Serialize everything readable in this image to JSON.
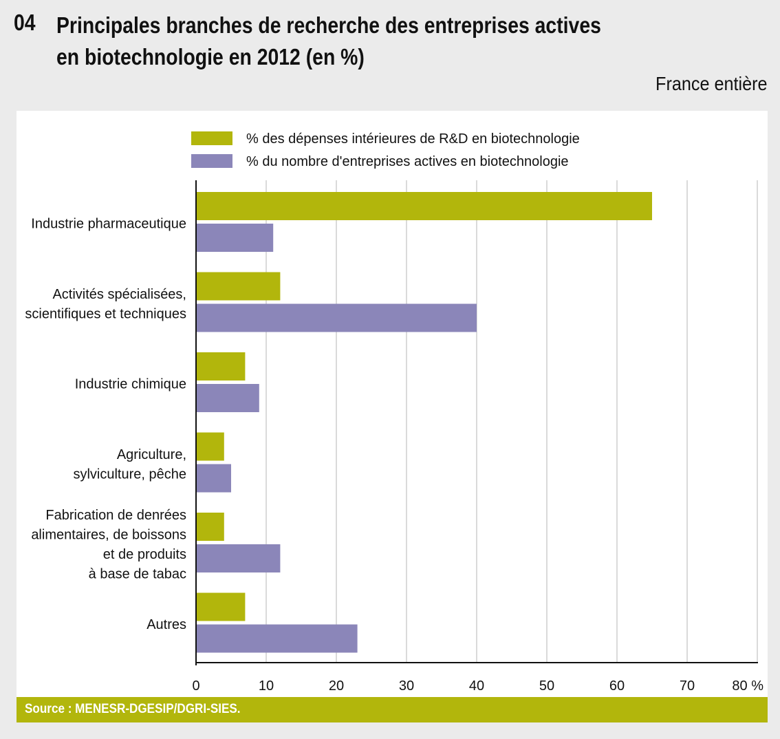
{
  "header": {
    "number": "04",
    "title_line1": "Principales branches de recherche des entreprises actives",
    "title_line2": "en biotechnologie en 2012 (en %)",
    "scope": "France entière"
  },
  "source": "Source : MENESR-DGESIP/DGRI-SIES.",
  "colors": {
    "series1": "#b2b60c",
    "series2": "#8b86b9"
  },
  "chart_data": {
    "type": "bar",
    "orientation": "horizontal",
    "title": "Principales branches de recherche des entreprises actives en biotechnologie en 2012 (en %)",
    "xlabel": "",
    "ylabel": "",
    "xlim": [
      0,
      80
    ],
    "ticks": [
      "0",
      "10",
      "20",
      "30",
      "40",
      "50",
      "60",
      "70",
      "80 %"
    ],
    "grid": true,
    "legend_position": "top",
    "categories": [
      [
        "Industrie pharmaceutique"
      ],
      [
        "Activités spécialisées,",
        "scientifiques et techniques"
      ],
      [
        "Industrie chimique"
      ],
      [
        "Agriculture,",
        "sylviculture, pêche"
      ],
      [
        "Fabrication de denrées",
        "alimentaires, de boissons",
        "et de produits ",
        "à base de tabac"
      ],
      [
        "Autres"
      ]
    ],
    "series": [
      {
        "name": "% des dépenses intérieures de R&D en biotechnologie",
        "values": [
          65,
          12,
          7,
          4,
          4,
          7
        ]
      },
      {
        "name": "% du nombre d'entreprises actives en biotechnologie",
        "values": [
          11,
          40,
          9,
          5,
          12,
          23
        ]
      }
    ]
  }
}
